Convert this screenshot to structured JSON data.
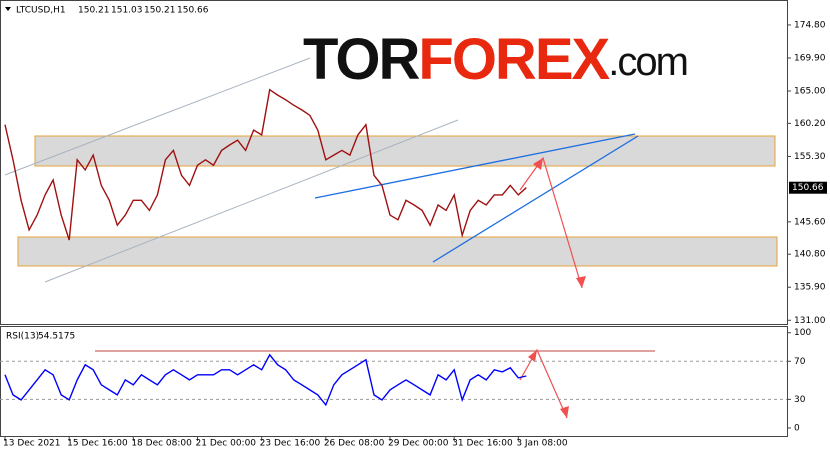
{
  "chart_data": [
    {
      "type": "line",
      "title": "LTCUSD,H1",
      "ohlc": [
        150.21,
        151.03,
        150.21,
        150.66
      ],
      "watermark": [
        "TOR",
        "FOREX",
        ".com"
      ],
      "last_price": 150.66,
      "x": [
        0,
        8,
        16,
        24,
        32,
        40,
        48,
        56,
        64,
        72,
        80,
        88,
        96,
        104,
        112,
        120,
        128,
        136,
        144,
        152,
        160,
        168,
        176,
        184,
        192,
        200,
        208,
        216,
        224,
        232,
        240,
        248,
        256,
        264,
        272,
        280,
        288,
        296,
        304,
        312,
        320,
        328,
        336,
        344,
        352,
        360,
        368,
        376,
        384,
        392,
        400,
        408,
        416,
        424,
        432,
        440,
        448,
        456,
        464,
        472,
        480,
        488,
        496,
        504,
        512,
        520
      ],
      "series": [
        {
          "color": "#a01010",
          "values": [
            160.0,
            154.8,
            148.8,
            144.4,
            146.6,
            149.6,
            151.8,
            146.6,
            142.9,
            154.8,
            153.3,
            155.5,
            151.0,
            148.8,
            145.1,
            146.6,
            148.8,
            148.8,
            147.3,
            149.6,
            154.8,
            156.2,
            152.5,
            151.0,
            154.0,
            154.8,
            154.0,
            156.2,
            157.0,
            157.7,
            156.2,
            159.2,
            158.5,
            165.2,
            164.4,
            163.7,
            162.9,
            162.2,
            161.4,
            159.2,
            154.8,
            155.5,
            156.2,
            155.5,
            158.5,
            160.0,
            152.5,
            151.0,
            146.6,
            145.9,
            148.8,
            148.1,
            147.3,
            145.1,
            148.1,
            147.3,
            149.6,
            143.6,
            147.3,
            148.8,
            148.1,
            149.6,
            149.6,
            151.0,
            149.6,
            150.66
          ]
        }
      ],
      "xlim": [
        -5,
        780
      ],
      "ylim": [
        130.3,
        178.5
      ],
      "yticks": [
        {
          "value": 174.8,
          "label": "174.80"
        },
        {
          "value": 169.9,
          "label": "169.90"
        },
        {
          "value": 165,
          "label": "165.00"
        },
        {
          "value": 160.2,
          "label": "160.20"
        },
        {
          "value": 155.3,
          "label": "155.30"
        },
        {
          "value": 145.6,
          "label": "145.60"
        },
        {
          "value": 140.8,
          "label": "140.80"
        },
        {
          "value": 135.9,
          "label": "135.90"
        },
        {
          "value": 131,
          "label": "131.00"
        }
      ]
    },
    {
      "type": "line",
      "title": "RSI(13)",
      "x": [
        0,
        8,
        16,
        24,
        32,
        40,
        48,
        56,
        64,
        72,
        80,
        88,
        96,
        104,
        112,
        120,
        128,
        136,
        144,
        152,
        160,
        168,
        176,
        184,
        192,
        200,
        208,
        216,
        224,
        232,
        240,
        248,
        256,
        264,
        272,
        280,
        288,
        296,
        304,
        312,
        320,
        328,
        336,
        344,
        352,
        360,
        368,
        376,
        384,
        392,
        400,
        408,
        416,
        424,
        432,
        440,
        448,
        456,
        464,
        472,
        480,
        488,
        496,
        504,
        512,
        520
      ],
      "series": [
        {
          "color": "#0000ff",
          "values": [
            55.8,
            34.7,
            29.5,
            40.0,
            50.5,
            61.1,
            55.8,
            34.7,
            29.5,
            50.5,
            66.3,
            61.1,
            45.3,
            40.0,
            34.7,
            50.5,
            45.3,
            55.8,
            50.5,
            45.3,
            55.8,
            61.1,
            55.8,
            50.5,
            55.8,
            55.8,
            55.8,
            61.1,
            61.1,
            55.8,
            61.1,
            66.3,
            61.1,
            76.8,
            66.3,
            61.1,
            50.5,
            45.3,
            40.0,
            34.7,
            24.2,
            45.3,
            55.8,
            61.1,
            66.3,
            71.6,
            34.7,
            29.5,
            40.0,
            45.3,
            50.5,
            45.3,
            40.0,
            34.7,
            55.8,
            50.5,
            61.1,
            29.5,
            50.5,
            55.8,
            50.5,
            61.1,
            58.9,
            63.2,
            52.6,
            54.5175
          ]
        }
      ],
      "xlim": [
        -5,
        780
      ],
      "ylim": [
        -9.5,
        106
      ],
      "yticks": [
        100,
        70,
        30,
        0
      ],
      "levels": [
        70,
        30
      ],
      "xticks": [
        {
          "value": 0,
          "label": "13 Dec 2021"
        },
        {
          "value": 64,
          "label": "15 Dec 16:00"
        },
        {
          "value": 128,
          "label": "18 Dec 08:00"
        },
        {
          "value": 192,
          "label": "21 Dec 00:00"
        },
        {
          "value": 256,
          "label": "23 Dec 16:00"
        },
        {
          "value": 320,
          "label": "26 Dec 08:00"
        },
        {
          "value": 384,
          "label": "29 Dec 00:00"
        },
        {
          "value": 448,
          "label": "31 Dec 16:00"
        },
        {
          "value": 512,
          "label": "3 Jan 08:00"
        }
      ]
    }
  ]
}
